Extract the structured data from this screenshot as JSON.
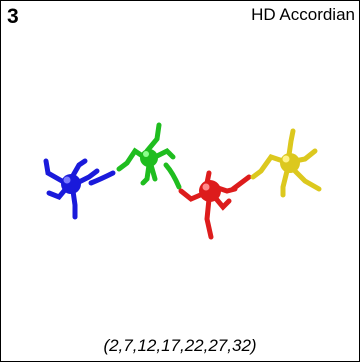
{
  "panel": {
    "number": "3",
    "title": "HD Accordian",
    "caption": "(2,7,12,17,22,27,32)"
  },
  "colors": {
    "blue": "#1a1adb",
    "green": "#1fbd1f",
    "red": "#dd1c1c",
    "yellow": "#dcc81e"
  }
}
